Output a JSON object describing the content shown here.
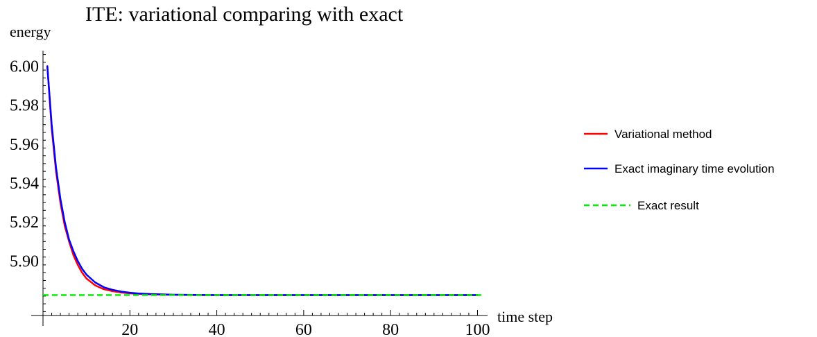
{
  "chart_data": {
    "type": "line",
    "title": "ITE: variational comparing with exact",
    "xlabel": "time step",
    "ylabel": "energy",
    "xlim": [
      0,
      102
    ],
    "ylim": [
      5.872,
      6.008
    ],
    "x_ticks": [
      20,
      40,
      60,
      80,
      100
    ],
    "y_ticks": [
      5.9,
      5.92,
      5.94,
      5.96,
      5.98,
      6.0
    ],
    "x_tick_labels": [
      "20",
      "40",
      "60",
      "80",
      "100"
    ],
    "y_tick_labels": [
      "5.90",
      "5.92",
      "5.94",
      "5.96",
      "5.98",
      "6.00"
    ],
    "grid": false,
    "legend_position": "right",
    "series": [
      {
        "name": "Variational method",
        "color": "#ff0000",
        "style": "solid",
        "x": [
          1,
          2,
          3,
          4,
          5,
          6,
          7,
          8,
          9,
          10,
          12,
          14,
          16,
          18,
          20,
          22,
          25,
          28,
          30,
          35,
          40,
          50,
          60,
          70,
          80,
          90,
          100
        ],
        "y": [
          6.0,
          5.968,
          5.946,
          5.93,
          5.918,
          5.91,
          5.903,
          5.898,
          5.894,
          5.891,
          5.8875,
          5.8855,
          5.8845,
          5.8838,
          5.8834,
          5.8831,
          5.8828,
          5.8827,
          5.8826,
          5.8825,
          5.8825,
          5.8825,
          5.8825,
          5.8825,
          5.8825,
          5.8825,
          5.8825
        ]
      },
      {
        "name": "Exact imaginary time evolution",
        "color": "#0000ff",
        "style": "solid",
        "x": [
          1,
          2,
          3,
          4,
          5,
          6,
          7,
          8,
          9,
          10,
          12,
          14,
          16,
          18,
          20,
          22,
          25,
          28,
          30,
          35,
          40,
          50,
          60,
          70,
          80,
          90,
          100
        ],
        "y": [
          6.0,
          5.97,
          5.948,
          5.932,
          5.92,
          5.911,
          5.905,
          5.9,
          5.896,
          5.893,
          5.889,
          5.8865,
          5.8852,
          5.8843,
          5.8837,
          5.8833,
          5.883,
          5.8828,
          5.8827,
          5.8826,
          5.8825,
          5.8825,
          5.8825,
          5.8825,
          5.8825,
          5.8825,
          5.8825
        ]
      },
      {
        "name": "Exact result",
        "color": "#00ee00",
        "style": "dashed",
        "x": [
          0,
          101
        ],
        "y": [
          5.8825,
          5.8825
        ]
      }
    ]
  }
}
